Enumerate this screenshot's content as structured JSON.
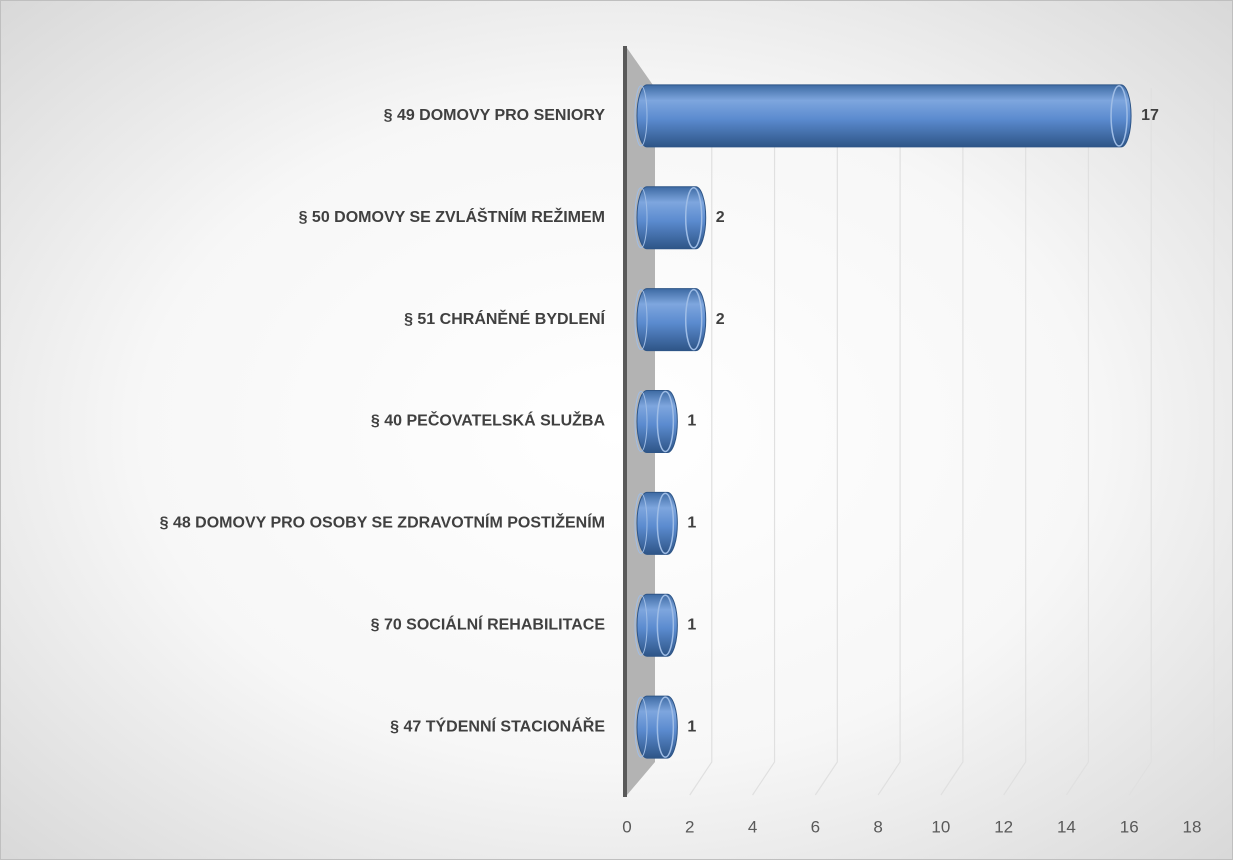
{
  "chart_data": {
    "type": "bar",
    "orientation": "horizontal",
    "categories": [
      "§ 49 DOMOVY PRO SENIORY",
      "§ 50 DOMOVY SE ZVLÁŠTNÍM REŽIMEM",
      "§ 51 CHRÁNĚNÉ BYDLENÍ",
      "§ 40 PEČOVATELSKÁ SLUŽBA",
      "§ 48 DOMOVY PRO OSOBY SE ZDRAVOTNÍM POSTIŽENÍM",
      "§ 70 SOCIÁLNÍ REHABILITACE",
      "§ 47 TÝDENNÍ STACIONÁŘE"
    ],
    "values": [
      17,
      2,
      2,
      1,
      1,
      1,
      1
    ],
    "color": "#4f81bd",
    "xlim": [
      0,
      18
    ],
    "xticks": [
      0,
      2,
      4,
      6,
      8,
      10,
      12,
      14,
      16,
      18
    ],
    "grid": true
  }
}
